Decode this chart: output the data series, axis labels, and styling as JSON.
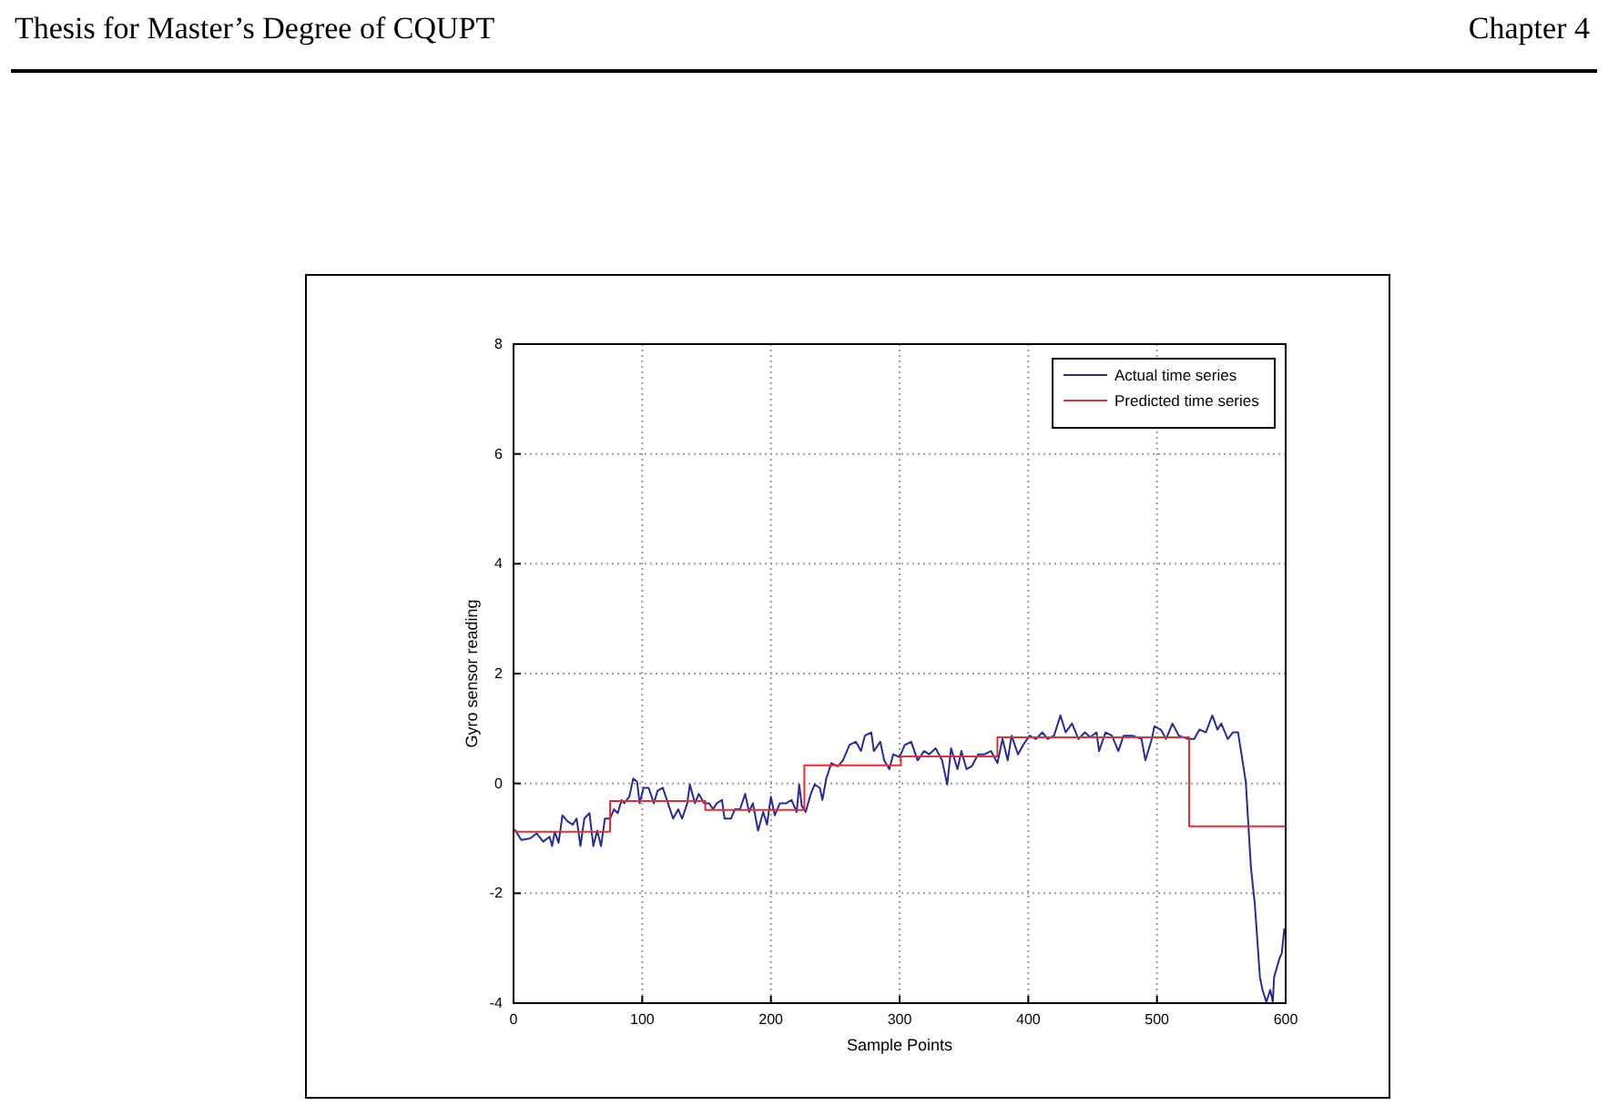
{
  "chart_data": {
    "type": "line",
    "xlabel": "Sample Points",
    "ylabel": "Gyro sensor reading",
    "annotations": [
      "Thesis for Master’s Degree of CQUPT",
      "Chapter 4"
    ],
    "xlim": [
      0,
      600
    ],
    "xticks": [
      0,
      100,
      200,
      300,
      400,
      500,
      600
    ],
    "ylim": [
      -4,
      8
    ],
    "yticks": [
      -4,
      -2,
      0,
      2,
      4,
      6,
      8
    ],
    "grid": true,
    "legend": "top right",
    "series": [
      {
        "name": "Actual time series",
        "color": "#2b2b8c",
        "x": [
          1,
          6,
          13,
          18,
          23,
          28,
          30,
          32,
          35,
          38,
          42,
          46,
          49,
          52,
          55,
          59,
          62,
          65,
          68,
          71,
          75,
          78,
          81,
          84,
          86,
          90,
          93,
          96,
          98,
          101,
          105,
          109,
          112,
          116,
          120,
          124,
          128,
          131,
          135,
          137,
          141,
          144,
          148,
          152,
          155,
          158,
          162,
          164,
          169,
          172,
          176,
          180,
          183,
          186,
          190,
          194,
          197,
          200,
          203,
          207,
          212,
          216,
          220,
          222,
          224,
          227,
          231,
          234,
          238,
          240,
          243,
          247,
          252,
          256,
          261,
          266,
          270,
          273,
          278,
          280,
          285,
          288,
          292,
          295,
          300,
          304,
          309,
          314,
          319,
          323,
          328,
          333,
          337,
          340,
          345,
          348,
          352,
          356,
          361,
          366,
          371,
          376,
          380,
          384,
          387,
          392,
          396,
          401,
          406,
          411,
          415,
          420,
          425,
          429,
          434,
          439,
          444,
          448,
          453,
          455,
          460,
          465,
          470,
          474,
          481,
          488,
          491,
          496,
          498,
          503,
          507,
          512,
          517,
          524,
          529,
          533,
          538,
          543,
          547,
          550,
          555,
          559,
          563,
          566,
          569,
          571,
          573,
          576,
          578,
          580,
          582,
          585,
          588,
          590,
          591,
          595,
          597,
          599
        ],
        "values": [
          -0.84,
          -1.03,
          -1.0,
          -0.91,
          -1.06,
          -0.97,
          -1.14,
          -0.88,
          -1.08,
          -0.58,
          -0.69,
          -0.75,
          -0.64,
          -1.14,
          -0.64,
          -0.54,
          -1.14,
          -0.86,
          -1.14,
          -0.64,
          -0.64,
          -0.47,
          -0.54,
          -0.3,
          -0.36,
          -0.24,
          0.09,
          0.03,
          -0.36,
          -0.08,
          -0.08,
          -0.36,
          -0.13,
          -0.08,
          -0.36,
          -0.64,
          -0.47,
          -0.64,
          -0.36,
          -0.02,
          -0.36,
          -0.19,
          -0.36,
          -0.36,
          -0.47,
          -0.36,
          -0.3,
          -0.64,
          -0.64,
          -0.47,
          -0.47,
          -0.19,
          -0.52,
          -0.36,
          -0.86,
          -0.52,
          -0.75,
          -0.24,
          -0.58,
          -0.36,
          -0.36,
          -0.3,
          -0.52,
          -0.02,
          -0.41,
          -0.52,
          -0.19,
          -0.02,
          -0.08,
          -0.3,
          0.09,
          0.37,
          0.31,
          0.42,
          0.7,
          0.76,
          0.59,
          0.87,
          0.93,
          0.59,
          0.76,
          0.42,
          0.26,
          0.53,
          0.48,
          0.7,
          0.76,
          0.42,
          0.59,
          0.53,
          0.64,
          0.42,
          -0.02,
          0.64,
          0.26,
          0.59,
          0.26,
          0.31,
          0.53,
          0.53,
          0.59,
          0.37,
          0.81,
          0.42,
          0.87,
          0.53,
          0.7,
          0.87,
          0.81,
          0.93,
          0.81,
          0.87,
          1.24,
          0.93,
          1.09,
          0.81,
          0.93,
          0.84,
          0.93,
          0.59,
          0.93,
          0.87,
          0.59,
          0.87,
          0.87,
          0.81,
          0.42,
          0.81,
          1.04,
          0.98,
          0.81,
          1.09,
          0.87,
          0.81,
          0.81,
          0.98,
          0.93,
          1.24,
          0.98,
          1.09,
          0.81,
          0.93,
          0.93,
          0.48,
          0.03,
          -0.75,
          -1.53,
          -2.19,
          -2.86,
          -3.53,
          -3.76,
          -3.98,
          -3.76,
          -3.98,
          -3.53,
          -3.2,
          -3.09,
          -2.64
        ]
      },
      {
        "name": "Predicted time series",
        "color": "#e0303a",
        "type": "step",
        "x": [
          0,
          75,
          149,
          226,
          301,
          376,
          525,
          600
        ],
        "values": [
          -0.88,
          -0.32,
          -0.48,
          0.33,
          0.49,
          0.84,
          -0.78,
          -0.78
        ]
      }
    ]
  }
}
